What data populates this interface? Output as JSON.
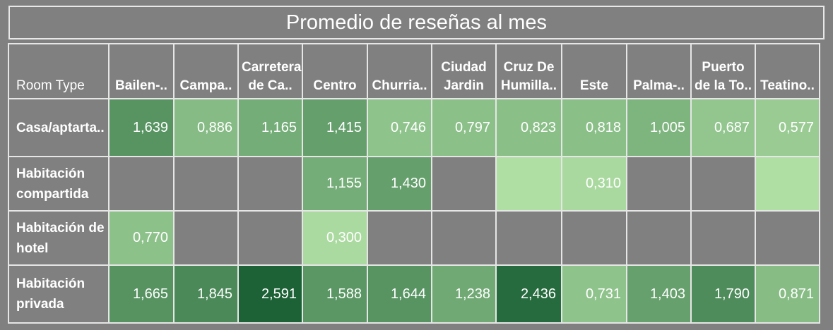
{
  "chart_data": {
    "type": "heatmap",
    "title": "Promedio de reseñas al mes",
    "row_header_label": "Room Type",
    "columns": [
      "Bailen-..",
      "Campa..",
      "Carretera de Ca..",
      "Centro",
      "Churria..",
      "Ciudad Jardin",
      "Cruz De Humilla..",
      "Este",
      "Palma-..",
      "Puerto de la To..",
      "Teatino.."
    ],
    "rows": [
      "Casa/aptarta..",
      "Habitación compartida",
      "Habitación de hotel",
      "Habitación privada"
    ],
    "values": [
      [
        1.639,
        0.886,
        1.165,
        1.415,
        0.746,
        0.797,
        0.823,
        0.818,
        1.005,
        0.687,
        0.577
      ],
      [
        null,
        null,
        null,
        1.155,
        1.43,
        null,
        0.2,
        0.31,
        null,
        null,
        0.2
      ],
      [
        0.77,
        null,
        null,
        0.3,
        null,
        null,
        null,
        null,
        null,
        null,
        null
      ],
      [
        1.665,
        1.845,
        2.591,
        1.588,
        1.644,
        1.238,
        2.436,
        0.731,
        1.403,
        1.79,
        0.871
      ]
    ],
    "labels": [
      [
        "1,639",
        "0,886",
        "1,165",
        "1,415",
        "0,746",
        "0,797",
        "0,823",
        "0,818",
        "1,005",
        "0,687",
        "0,577"
      ],
      [
        "",
        "",
        "",
        "1,155",
        "1,430",
        "",
        "",
        "0,310",
        "",
        "",
        ""
      ],
      [
        "0,770",
        "",
        "",
        "0,300",
        "",
        "",
        "",
        "",
        "",
        "",
        ""
      ],
      [
        "1,665",
        "1,845",
        "2,591",
        "1,588",
        "1,644",
        "1,238",
        "2,436",
        "0,731",
        "1,403",
        "1,790",
        "0,871"
      ]
    ],
    "color_scale": {
      "low": "#b0dfa4",
      "high": "#1c6236",
      "domain": [
        0.2,
        2.6
      ]
    },
    "empty_color": "#808080"
  }
}
